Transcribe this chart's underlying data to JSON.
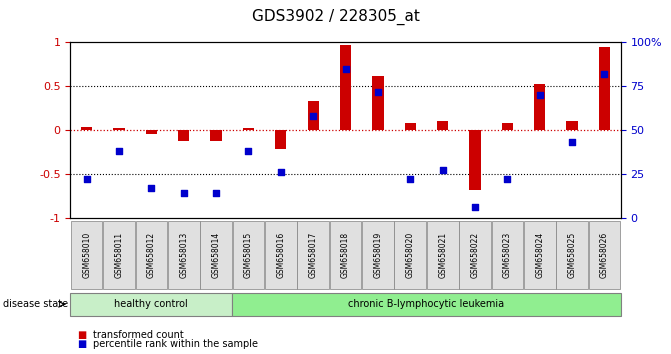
{
  "title": "GDS3902 / 228305_at",
  "samples": [
    "GSM658010",
    "GSM658011",
    "GSM658012",
    "GSM658013",
    "GSM658014",
    "GSM658015",
    "GSM658016",
    "GSM658017",
    "GSM658018",
    "GSM658019",
    "GSM658020",
    "GSM658021",
    "GSM658022",
    "GSM658023",
    "GSM658024",
    "GSM658025",
    "GSM658026"
  ],
  "red_values": [
    0.03,
    0.02,
    -0.05,
    -0.12,
    -0.12,
    0.02,
    -0.22,
    0.33,
    0.97,
    0.62,
    0.08,
    0.1,
    -0.68,
    0.08,
    0.53,
    0.1,
    0.95
  ],
  "blue_pct": [
    22,
    38,
    17,
    14,
    14,
    38,
    26,
    58,
    85,
    72,
    22,
    27,
    6,
    22,
    70,
    43,
    82
  ],
  "healthy_count": 5,
  "disease_label_healthy": "healthy control",
  "disease_label_chronic": "chronic B-lymphocytic leukemia",
  "disease_state_label": "disease state",
  "legend_red": "transformed count",
  "legend_blue": "percentile rank within the sample",
  "red_color": "#CC0000",
  "blue_color": "#0000CC",
  "ylim": [
    -1,
    1
  ],
  "yticks_left": [
    -1,
    -0.5,
    0,
    0.5,
    1
  ],
  "yticks_right": [
    0,
    25,
    50,
    75,
    100
  ],
  "ytick_right_labels": [
    "0",
    "25",
    "50",
    "75",
    "100%"
  ],
  "healthy_bg": "#c8efc8",
  "chronic_bg": "#90ee90",
  "bar_width": 0.35,
  "tick_bg": "#e0e0e0"
}
